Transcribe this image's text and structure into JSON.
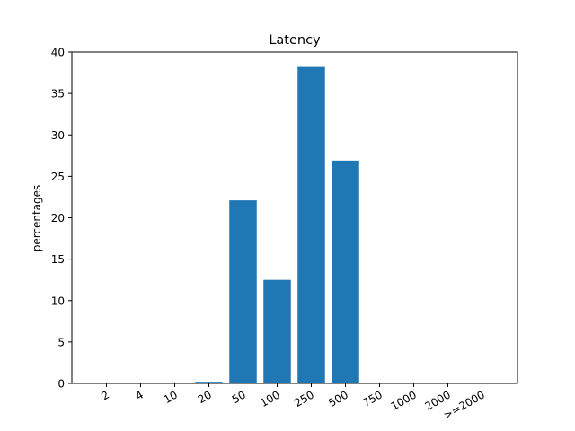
{
  "chart_data": {
    "type": "bar",
    "title": "Latency",
    "xlabel": "",
    "ylabel": "percentages",
    "categories": [
      "2",
      "4",
      "10",
      "20",
      "50",
      "100",
      "250",
      "500",
      "750",
      "1000",
      "2000",
      ">=2000"
    ],
    "values": [
      0,
      0,
      0,
      0.2,
      22.1,
      12.5,
      38.2,
      26.9,
      0,
      0,
      0,
      0
    ],
    "ylim": [
      0,
      40
    ],
    "yticks": [
      0,
      5,
      10,
      15,
      20,
      25,
      30,
      35,
      40
    ],
    "grid": false,
    "bar_color": "#1f77b4"
  }
}
